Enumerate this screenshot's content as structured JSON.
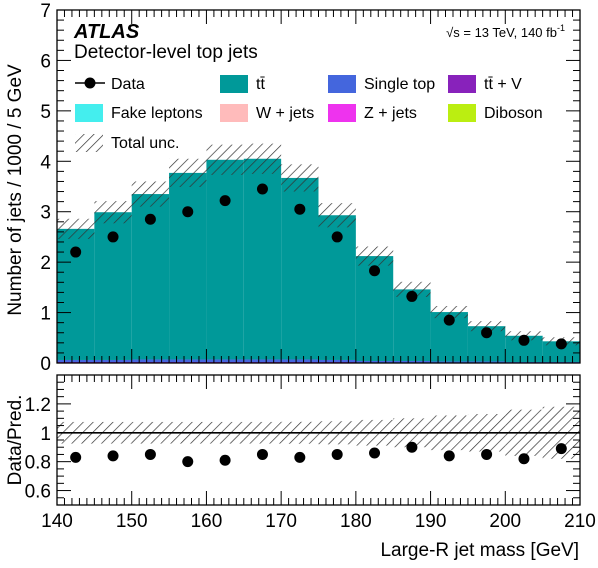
{
  "atlas": "ATLAS",
  "subtitle": "Detector-level top jets",
  "energy": {
    "sqrt": "√s",
    "text": " = 13 TeV, 140 fb",
    "sup": "-1"
  },
  "legend": [
    {
      "key": "data",
      "label": "Data",
      "style": "marker"
    },
    {
      "key": "ttbar",
      "label": "tt̄",
      "style": "fill"
    },
    {
      "key": "single_top",
      "label": "Single top",
      "style": "fill"
    },
    {
      "key": "ttv",
      "label": "tt̄ + V",
      "style": "fill"
    },
    {
      "key": "fake_leptons",
      "label": "Fake leptons",
      "style": "fill"
    },
    {
      "key": "wjets",
      "label": "W + jets",
      "style": "fill"
    },
    {
      "key": "zjets",
      "label": "Z + jets",
      "style": "fill"
    },
    {
      "key": "diboson",
      "label": "Diboson",
      "style": "fill"
    },
    {
      "key": "total_unc",
      "label": "Total unc.",
      "style": "hatch"
    }
  ],
  "colors": {
    "ttbar": "#009999",
    "single_top": "#4466dd",
    "ttv": "#8822bb",
    "fake_leptons": "#44eeee",
    "wjets": "#ffbbbb",
    "zjets": "#ee33ee",
    "diboson": "#bbee11",
    "data": "#000000",
    "hatch": "#333333"
  },
  "chart_data": [
    {
      "type": "bar",
      "stacked": true,
      "ylabel": "Number of jets / 1000 / 5 GeV",
      "ylim": [
        0,
        7
      ],
      "yticks": [
        0,
        1,
        2,
        3,
        4,
        5,
        6,
        7
      ],
      "bin_edges": [
        140,
        145,
        150,
        155,
        160,
        165,
        170,
        175,
        180,
        185,
        190,
        195,
        200,
        205,
        210
      ],
      "series": [
        {
          "name": "tt̄",
          "key": "ttbar",
          "values": [
            2.6,
            2.93,
            3.28,
            3.7,
            3.96,
            3.98,
            3.6,
            2.87,
            2.08,
            1.42,
            0.98,
            0.7,
            0.52,
            0.41
          ]
        },
        {
          "name": "Single top",
          "key": "single_top",
          "values": [
            0.04,
            0.04,
            0.05,
            0.05,
            0.05,
            0.05,
            0.05,
            0.04,
            0.03,
            0.03,
            0.02,
            0.02,
            0.01,
            0.01
          ]
        },
        {
          "name": "tt̄ + V",
          "key": "ttv",
          "values": [
            0.02,
            0.02,
            0.02,
            0.02,
            0.02,
            0.02,
            0.02,
            0.02,
            0.01,
            0.01,
            0.01,
            0.01,
            0.01,
            0.01
          ]
        }
      ],
      "total_prediction": [
        2.66,
        2.99,
        3.35,
        3.77,
        4.03,
        4.05,
        3.67,
        2.93,
        2.12,
        1.46,
        1.01,
        0.73,
        0.54,
        0.43
      ],
      "total_uncertainty": [
        0.2,
        0.22,
        0.25,
        0.28,
        0.3,
        0.3,
        0.27,
        0.24,
        0.19,
        0.15,
        0.12,
        0.1,
        0.09,
        0.08
      ],
      "data": {
        "name": "Data",
        "x": [
          142.5,
          147.5,
          152.5,
          157.5,
          162.5,
          167.5,
          172.5,
          177.5,
          182.5,
          187.5,
          192.5,
          197.5,
          202.5,
          207.5
        ],
        "y": [
          2.2,
          2.5,
          2.85,
          3.0,
          3.22,
          3.45,
          3.05,
          2.5,
          1.83,
          1.32,
          0.85,
          0.6,
          0.45,
          0.38
        ]
      }
    },
    {
      "type": "scatter",
      "ylabel": "Data/Pred.",
      "xlabel": "Large-R jet mass [GeV]",
      "xlim": [
        140,
        210
      ],
      "xticks": [
        140,
        150,
        160,
        170,
        180,
        190,
        200,
        210
      ],
      "ylim": [
        0.5,
        1.4
      ],
      "yticks": [
        0.6,
        0.8,
        1.0,
        1.2
      ],
      "ytick_labels": [
        "0.6",
        "0.8",
        "1",
        "1.2"
      ],
      "reference_line": 1.0,
      "x": [
        142.5,
        147.5,
        152.5,
        157.5,
        162.5,
        167.5,
        172.5,
        177.5,
        182.5,
        187.5,
        192.5,
        197.5,
        202.5,
        207.5
      ],
      "ratio": [
        0.83,
        0.84,
        0.85,
        0.8,
        0.81,
        0.85,
        0.83,
        0.85,
        0.86,
        0.9,
        0.84,
        0.85,
        0.82,
        0.89
      ],
      "unc_band": [
        0.075,
        0.075,
        0.075,
        0.075,
        0.075,
        0.075,
        0.076,
        0.08,
        0.089,
        0.1,
        0.12,
        0.13,
        0.16,
        0.18
      ]
    }
  ]
}
